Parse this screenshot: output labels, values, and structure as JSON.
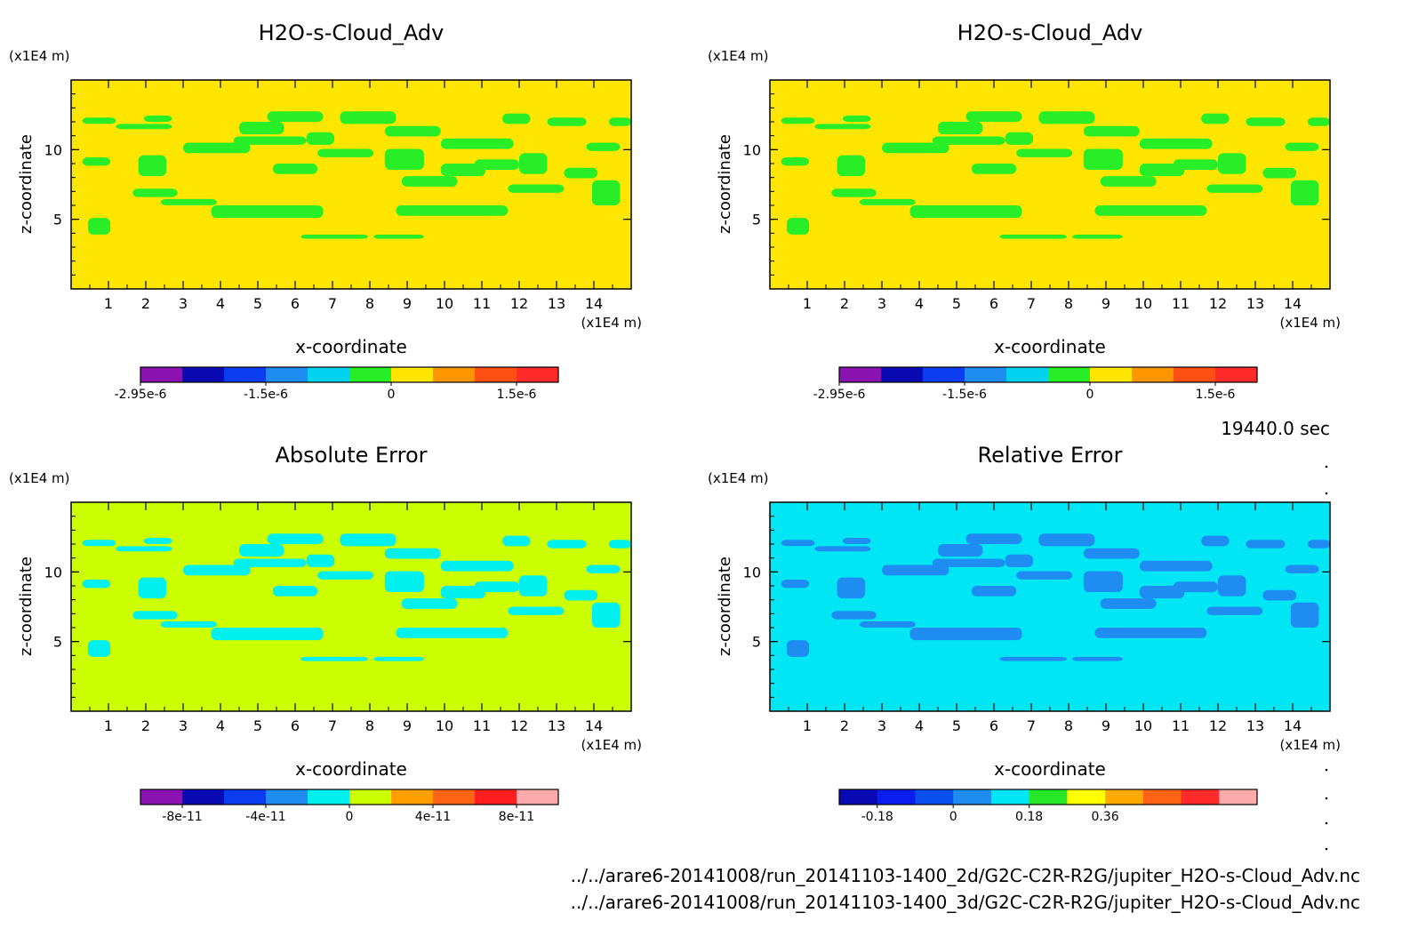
{
  "time_label": "19440.0 sec",
  "footer_paths": [
    "../../arare6-20141008/run_20141103-1400_2d/G2C-C2R-R2G/jupiter_H2O-s-Cloud_Adv.nc",
    "../../arare6-20141008/run_20141103-1400_3d/G2C-C2R-R2G/jupiter_H2O-s-Cloud_Adv.nc"
  ],
  "chart_data": [
    {
      "type": "heatmap",
      "title": "H2O-s-Cloud_Adv",
      "xlabel": "x-coordinate",
      "ylabel": "z-coordinate",
      "x_unit": "(x1E4 m)",
      "y_unit": "(x1E4 m)",
      "xlim": [
        0,
        15
      ],
      "ylim": [
        0,
        15
      ],
      "x_ticks": [
        1,
        2,
        3,
        4,
        5,
        6,
        7,
        8,
        9,
        10,
        11,
        12,
        13,
        14
      ],
      "y_ticks": [
        5,
        10
      ],
      "background_color": "#ffe600",
      "colorbar": {
        "colors": [
          "#8a12b0",
          "#0a0ab4",
          "#0a3cf0",
          "#1e8cf0",
          "#00d2f0",
          "#28ee28",
          "#ffe600",
          "#ff9600",
          "#ff5014",
          "#ff2a2a"
        ],
        "tick_labels": [
          "-2.95e-6",
          "-1.5e-6",
          "0",
          "1.5e-6"
        ],
        "tick_positions": [
          0,
          3,
          6,
          9
        ]
      }
    },
    {
      "type": "heatmap",
      "title": "H2O-s-Cloud_Adv",
      "xlabel": "x-coordinate",
      "ylabel": "z-coordinate",
      "x_unit": "(x1E4 m)",
      "y_unit": "(x1E4 m)",
      "xlim": [
        0,
        15
      ],
      "ylim": [
        0,
        15
      ],
      "x_ticks": [
        1,
        2,
        3,
        4,
        5,
        6,
        7,
        8,
        9,
        10,
        11,
        12,
        13,
        14
      ],
      "y_ticks": [
        5,
        10
      ],
      "background_color": "#ffe600",
      "colorbar": {
        "colors": [
          "#8a12b0",
          "#0a0ab4",
          "#0a3cf0",
          "#1e8cf0",
          "#00d2f0",
          "#28ee28",
          "#ffe600",
          "#ff9600",
          "#ff5014",
          "#ff2a2a"
        ],
        "tick_labels": [
          "-2.95e-6",
          "-1.5e-6",
          "0",
          "1.5e-6"
        ],
        "tick_positions": [
          0,
          3,
          6,
          9
        ]
      }
    },
    {
      "type": "heatmap",
      "title": "Absolute Error",
      "xlabel": "x-coordinate",
      "ylabel": "z-coordinate",
      "x_unit": "(x1E4 m)",
      "y_unit": "(x1E4 m)",
      "xlim": [
        0,
        15
      ],
      "ylim": [
        0,
        15
      ],
      "x_ticks": [
        1,
        2,
        3,
        4,
        5,
        6,
        7,
        8,
        9,
        10,
        11,
        12,
        13,
        14
      ],
      "y_ticks": [
        5,
        10
      ],
      "background_color": "#ccff00",
      "colorbar": {
        "colors": [
          "#8a12b0",
          "#0a0ab4",
          "#0a3cf0",
          "#1e8cf0",
          "#00f0f0",
          "#ccff00",
          "#ffa000",
          "#ff6414",
          "#ff1e1e",
          "#ffaaaa"
        ],
        "tick_labels": [
          "-8e-11",
          "-4e-11",
          "0",
          "4e-11",
          "8e-11"
        ],
        "tick_positions": [
          1,
          3,
          5,
          7,
          9
        ]
      }
    },
    {
      "type": "heatmap",
      "title": "Relative Error",
      "xlabel": "x-coordinate",
      "ylabel": "z-coordinate",
      "x_unit": "(x1E4 m)",
      "y_unit": "(x1E4 m)",
      "xlim": [
        0,
        15
      ],
      "ylim": [
        0,
        15
      ],
      "x_ticks": [
        1,
        2,
        3,
        4,
        5,
        6,
        7,
        8,
        9,
        10,
        11,
        12,
        13,
        14
      ],
      "y_ticks": [
        5,
        10
      ],
      "background_color": "#00e6f5",
      "colorbar": {
        "colors": [
          "#0a0ab4",
          "#0a1ef0",
          "#0a50f0",
          "#1e8cf0",
          "#00e6f5",
          "#28e628",
          "#ffff00",
          "#ffaa00",
          "#ff6414",
          "#ff2a2a",
          "#ffaaaa"
        ],
        "tick_labels": [
          "-0.18",
          "0",
          "0.18",
          "0.36"
        ],
        "tick_positions": [
          1,
          3,
          5,
          7
        ]
      }
    }
  ]
}
